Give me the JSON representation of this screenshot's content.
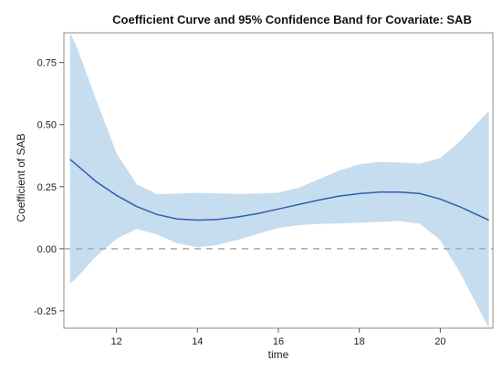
{
  "chart_data": {
    "type": "line",
    "title": "Coefficient Curve and 95% Confidence Band for Covariate: SAB",
    "xlabel": "time",
    "ylabel": "Coefficient of SAB",
    "xlim": [
      10.7,
      21.3
    ],
    "ylim": [
      -0.32,
      0.87
    ],
    "x_ticks": [
      12,
      14,
      16,
      18,
      20
    ],
    "y_ticks": [
      -0.25,
      0.0,
      0.25,
      0.5,
      0.75
    ],
    "x_tick_labels": [
      "12",
      "14",
      "16",
      "18",
      "20"
    ],
    "y_tick_labels": [
      "-0.25",
      "0.00",
      "0.25",
      "0.50",
      "0.75"
    ],
    "reference_line": {
      "y": 0
    },
    "band_color": "#c6dcef",
    "line_color": "#2f5fb3",
    "reference_line_color": "#a9a9a9",
    "frame_color": "#8c8c8c",
    "series": [
      {
        "x": [
          10.85,
          11,
          11.5,
          12,
          12.5,
          13,
          13.5,
          14,
          14.5,
          15,
          15.5,
          16,
          16.5,
          17,
          17.5,
          18,
          18.5,
          19,
          19.5,
          20,
          20.5,
          21.2
        ],
        "estimate": [
          0.36,
          0.34,
          0.27,
          0.215,
          0.17,
          0.138,
          0.12,
          0.115,
          0.118,
          0.128,
          0.142,
          0.16,
          0.178,
          0.196,
          0.212,
          0.222,
          0.228,
          0.228,
          0.222,
          0.2,
          0.168,
          0.115
        ],
        "upper": [
          0.87,
          0.82,
          0.6,
          0.385,
          0.26,
          0.22,
          0.222,
          0.225,
          0.223,
          0.221,
          0.222,
          0.226,
          0.245,
          0.28,
          0.315,
          0.34,
          0.35,
          0.347,
          0.343,
          0.365,
          0.435,
          0.555
        ],
        "lower": [
          -0.14,
          -0.12,
          -0.03,
          0.04,
          0.08,
          0.057,
          0.022,
          0.006,
          0.015,
          0.036,
          0.06,
          0.084,
          0.095,
          0.1,
          0.102,
          0.105,
          0.108,
          0.112,
          0.1,
          0.035,
          -0.1,
          -0.32
        ]
      }
    ]
  }
}
